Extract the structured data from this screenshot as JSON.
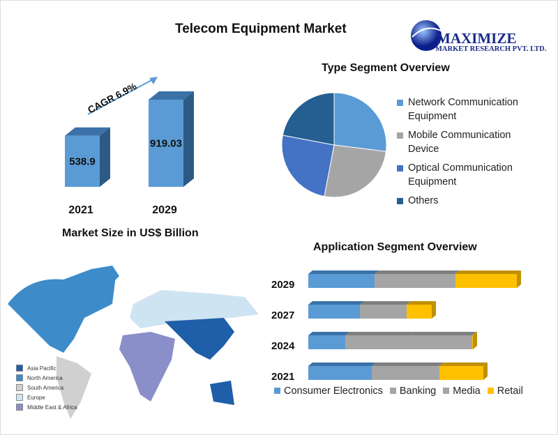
{
  "title": "Telecom Equipment  Market",
  "logo": {
    "name": "MAXIMIZE",
    "sub": "MARKET RESEARCH PVT. LTD."
  },
  "chart_data": [
    {
      "type": "bar",
      "title": "",
      "xlabel": "Market Size in US$ Billion",
      "categories": [
        "2021",
        "2029"
      ],
      "values": [
        538.9,
        919.03
      ],
      "annotation": "CAGR 6.9%",
      "color": "#5b9bd5"
    },
    {
      "type": "pie",
      "title": "Type Segment Overview",
      "categories": [
        "Network Communication Equipment",
        "Mobile Communication Device",
        "Optical Communication Equipment",
        "Others"
      ],
      "values": [
        27,
        26,
        25,
        22
      ],
      "colors": [
        "#5b9bd5",
        "#a5a5a5",
        "#4472c4",
        "#255e91"
      ],
      "legend": "right"
    },
    {
      "type": "bar",
      "orientation": "horizontal",
      "stacked": true,
      "title": "Application  Segment Overview",
      "categories": [
        "2029",
        "2027",
        "2024",
        "2021"
      ],
      "series": [
        {
          "name": "Consumer Electronics",
          "values": [
            95,
            74,
            53,
            91
          ],
          "color": "#5b9bd5"
        },
        {
          "name": "Banking",
          "values": [
            116,
            67,
            93,
            97
          ],
          "color": "#a5a5a5"
        },
        {
          "name": "Media",
          "values": [
            0,
            0,
            89,
            0
          ],
          "color": "#a5a5a5"
        },
        {
          "name": "Retail",
          "values": [
            88,
            36,
            1,
            63
          ],
          "color": "#ffc000"
        }
      ],
      "legend": "bottom"
    }
  ],
  "map": {
    "legend": [
      {
        "label": "Asia Pacific",
        "color": "#1f5ea8"
      },
      {
        "label": "North America",
        "color": "#3d8bc9"
      },
      {
        "label": "South America",
        "color": "#d0d0d0"
      },
      {
        "label": "Europe",
        "color": "#cfe4f2"
      },
      {
        "label": "Middle East & Africa",
        "color": "#8a8fc9"
      }
    ]
  }
}
